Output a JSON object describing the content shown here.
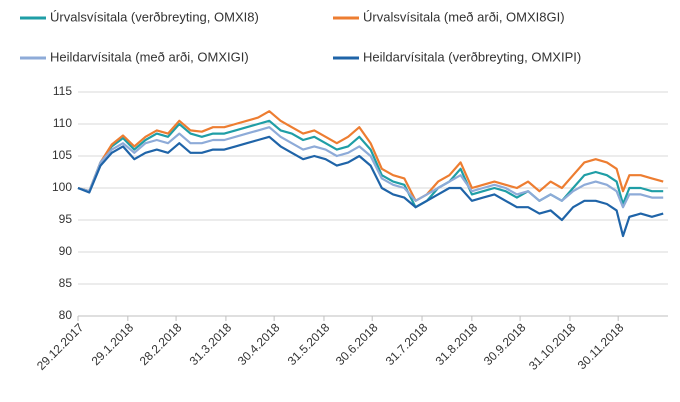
{
  "chart_data": {
    "type": "line",
    "series": [
      {
        "name": "Úrvalsvísitala (verðbreyting, OMXI8)",
        "color": "#1f9ea6",
        "values": [
          100,
          99.5,
          104,
          106.5,
          107.8,
          106,
          107.5,
          108.5,
          108,
          110,
          108.5,
          108,
          108.5,
          108.5,
          109,
          109.5,
          110,
          110.5,
          109,
          108.5,
          107.5,
          108,
          107,
          106,
          106.5,
          108,
          106,
          102,
          101,
          100.5,
          97,
          98,
          100,
          101,
          103,
          99,
          99.5,
          100,
          99.5,
          98.5,
          99.5,
          98,
          99,
          98,
          100,
          102,
          102.5,
          102,
          101,
          97.5,
          100,
          100,
          99.5,
          99.5
        ]
      },
      {
        "name": "Úrvalsvísitala (með arði, OMXI8GI)",
        "color": "#ed7d31",
        "values": [
          100,
          99.5,
          104,
          106.8,
          108.2,
          106.5,
          108,
          109,
          108.5,
          110.5,
          109,
          108.8,
          109.5,
          109.5,
          110,
          110.5,
          111,
          112,
          110.5,
          109.5,
          108.5,
          109,
          108,
          107,
          108,
          109.5,
          107,
          103,
          102,
          101.5,
          98,
          99,
          101,
          102,
          104,
          100,
          100.5,
          101,
          100.5,
          100,
          101,
          99.5,
          101,
          100,
          102,
          104,
          104.5,
          104,
          103,
          99.5,
          102,
          102,
          101.5,
          101
        ]
      },
      {
        "name": "Heildarvísitala (með arði, OMXIGI)",
        "color": "#8eabd8",
        "values": [
          100,
          99.5,
          104,
          106,
          107,
          105.5,
          107,
          107.5,
          107,
          108.5,
          107,
          107,
          107.5,
          107.5,
          108,
          108.5,
          109,
          109.5,
          108,
          107,
          106,
          106.5,
          106,
          105,
          105.5,
          106.5,
          105,
          101.5,
          100.5,
          100,
          98,
          99,
          100,
          101,
          102,
          99.5,
          100,
          100.5,
          100,
          99,
          99.5,
          98,
          99,
          98,
          99.5,
          100.5,
          101,
          100.5,
          99.5,
          97,
          99,
          99,
          98.5,
          98.5
        ]
      },
      {
        "name": "Heildarvísitala (verðbreyting, OMXIPI)",
        "color": "#1f64a8",
        "values": [
          100,
          99.3,
          103.5,
          105.5,
          106.5,
          104.5,
          105.5,
          106,
          105.5,
          107,
          105.5,
          105.5,
          106,
          106,
          106.5,
          107,
          107.5,
          108,
          106.5,
          105.5,
          104.5,
          105,
          104.5,
          103.5,
          104,
          105,
          103.5,
          100,
          99,
          98.5,
          97,
          98,
          99,
          100,
          100,
          98,
          98.5,
          99,
          98,
          97,
          97,
          96,
          96.5,
          95,
          97,
          98,
          98,
          97.5,
          96.5,
          92.5,
          95.5,
          96,
          95.5,
          96
        ]
      }
    ],
    "x": [
      "29.12.2017",
      "5.1.2018",
      "12.1.2018",
      "19.1.2018",
      "26.1.2018",
      "2.2.2018",
      "9.2.2018",
      "16.2.2018",
      "23.2.2018",
      "2.3.2018",
      "9.3.2018",
      "16.3.2018",
      "23.3.2018",
      "30.3.2018",
      "6.4.2018",
      "13.4.2018",
      "20.4.2018",
      "27.4.2018",
      "4.5.2018",
      "11.5.2018",
      "18.5.2018",
      "25.5.2018",
      "1.6.2018",
      "8.6.2018",
      "15.6.2018",
      "22.6.2018",
      "29.6.2018",
      "6.7.2018",
      "13.7.2018",
      "20.7.2018",
      "27.7.2018",
      "3.8.2018",
      "10.8.2018",
      "17.8.2018",
      "24.8.2018",
      "31.8.2018",
      "7.9.2018",
      "14.9.2018",
      "21.9.2018",
      "28.9.2018",
      "5.10.2018",
      "12.10.2018",
      "19.10.2018",
      "26.10.2018",
      "2.11.2018",
      "9.11.2018",
      "16.11.2018",
      "23.11.2018",
      "29.11.2018",
      "3.12.2018",
      "7.12.2018",
      "14.12.2018",
      "21.12.2018",
      "28.12.2018"
    ],
    "xticks": [
      "29.12.2017",
      "29.1.2018",
      "28.2.2018",
      "31.3.2018",
      "30.4.2018",
      "31.5.2018",
      "30.6.2018",
      "31.7.2018",
      "31.8.2018",
      "30.9.2018",
      "31.10.2018",
      "30.11.2018"
    ],
    "xlim": [
      "29.12.2017",
      "31.12.2018"
    ],
    "ylim": [
      80,
      115
    ],
    "yticks": [
      80,
      85,
      90,
      95,
      100,
      105,
      110,
      115
    ],
    "grid": true
  }
}
